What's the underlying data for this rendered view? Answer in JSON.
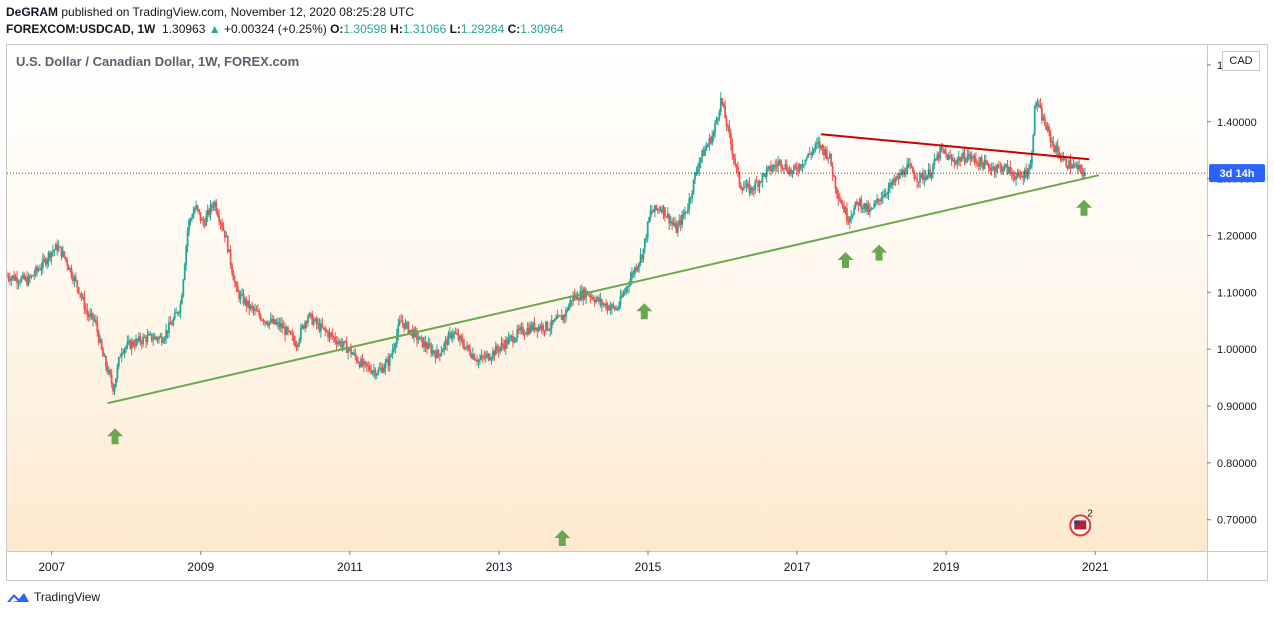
{
  "header": {
    "author": "DeGRAM",
    "published_text": "published on TradingView.com, November 12, 2020 08:25:28 UTC",
    "symbol": "FOREXCOM:USDCAD, 1W",
    "last_price": "1.30963",
    "change": "+0.00324 (+0.25%)",
    "open_label": "O:",
    "open": "1.30598",
    "high_label": "H:",
    "high": "1.31066",
    "low_label": "L:",
    "low": "1.29284",
    "close_label": "C:",
    "close": "1.30964"
  },
  "footer": {
    "brand": "TradingView"
  },
  "chart_data": {
    "type": "candlestick",
    "title": "U.S. Dollar / Canadian Dollar, 1W, FOREX.com",
    "currency_label": "CAD",
    "countdown_label": "3d 14h",
    "y_ticks": [
      "1.50000",
      "1.40000",
      "1.30000",
      "1.20000",
      "1.10000",
      "1.00000",
      "0.90000",
      "0.80000",
      "0.70000"
    ],
    "ylim": [
      0.645,
      1.535
    ],
    "x_ticks": [
      "2007",
      "2009",
      "2011",
      "2013",
      "2015",
      "2017",
      "2019",
      "2021"
    ],
    "xlim": [
      2006.4,
      2022.5
    ],
    "current_price": 1.30963,
    "price_path": [
      [
        2006.4,
        1.13
      ],
      [
        2006.7,
        1.12
      ],
      [
        2006.9,
        1.15
      ],
      [
        2007.0,
        1.17
      ],
      [
        2007.1,
        1.18
      ],
      [
        2007.2,
        1.16
      ],
      [
        2007.4,
        1.1
      ],
      [
        2007.5,
        1.06
      ],
      [
        2007.6,
        1.05
      ],
      [
        2007.7,
        0.99
      ],
      [
        2007.85,
        0.93
      ],
      [
        2007.95,
        1.0
      ],
      [
        2008.1,
        1.01
      ],
      [
        2008.3,
        1.02
      ],
      [
        2008.5,
        1.02
      ],
      [
        2008.65,
        1.05
      ],
      [
        2008.75,
        1.08
      ],
      [
        2008.85,
        1.22
      ],
      [
        2008.95,
        1.25
      ],
      [
        2009.05,
        1.22
      ],
      [
        2009.2,
        1.26
      ],
      [
        2009.35,
        1.2
      ],
      [
        2009.5,
        1.1
      ],
      [
        2009.7,
        1.07
      ],
      [
        2009.9,
        1.05
      ],
      [
        2010.1,
        1.04
      ],
      [
        2010.3,
        1.01
      ],
      [
        2010.45,
        1.06
      ],
      [
        2010.6,
        1.04
      ],
      [
        2010.8,
        1.02
      ],
      [
        2011.0,
        1.0
      ],
      [
        2011.2,
        0.97
      ],
      [
        2011.4,
        0.96
      ],
      [
        2011.55,
        0.98
      ],
      [
        2011.7,
        1.05
      ],
      [
        2011.85,
        1.03
      ],
      [
        2012.0,
        1.01
      ],
      [
        2012.2,
        0.99
      ],
      [
        2012.4,
        1.03
      ],
      [
        2012.6,
        1.0
      ],
      [
        2012.75,
        0.98
      ],
      [
        2012.9,
        0.99
      ],
      [
        2013.1,
        1.01
      ],
      [
        2013.3,
        1.03
      ],
      [
        2013.5,
        1.04
      ],
      [
        2013.7,
        1.04
      ],
      [
        2013.9,
        1.06
      ],
      [
        2014.0,
        1.09
      ],
      [
        2014.2,
        1.1
      ],
      [
        2014.4,
        1.08
      ],
      [
        2014.6,
        1.07
      ],
      [
        2014.8,
        1.13
      ],
      [
        2014.95,
        1.17
      ],
      [
        2015.05,
        1.24
      ],
      [
        2015.2,
        1.25
      ],
      [
        2015.4,
        1.21
      ],
      [
        2015.55,
        1.25
      ],
      [
        2015.7,
        1.33
      ],
      [
        2015.9,
        1.38
      ],
      [
        2016.0,
        1.44
      ],
      [
        2016.1,
        1.38
      ],
      [
        2016.25,
        1.29
      ],
      [
        2016.4,
        1.28
      ],
      [
        2016.6,
        1.31
      ],
      [
        2016.8,
        1.33
      ],
      [
        2016.95,
        1.31
      ],
      [
        2017.1,
        1.33
      ],
      [
        2017.3,
        1.36
      ],
      [
        2017.45,
        1.34
      ],
      [
        2017.55,
        1.28
      ],
      [
        2017.7,
        1.23
      ],
      [
        2017.85,
        1.26
      ],
      [
        2018.0,
        1.24
      ],
      [
        2018.15,
        1.27
      ],
      [
        2018.3,
        1.29
      ],
      [
        2018.5,
        1.32
      ],
      [
        2018.65,
        1.3
      ],
      [
        2018.8,
        1.31
      ],
      [
        2018.95,
        1.35
      ],
      [
        2019.1,
        1.33
      ],
      [
        2019.3,
        1.34
      ],
      [
        2019.45,
        1.33
      ],
      [
        2019.6,
        1.32
      ],
      [
        2019.8,
        1.32
      ],
      [
        2020.0,
        1.3
      ],
      [
        2020.15,
        1.32
      ],
      [
        2020.22,
        1.44
      ],
      [
        2020.3,
        1.41
      ],
      [
        2020.45,
        1.36
      ],
      [
        2020.6,
        1.33
      ],
      [
        2020.75,
        1.32
      ],
      [
        2020.87,
        1.31
      ]
    ],
    "trendlines": [
      {
        "name": "support",
        "color": "#6aa84f",
        "points": [
          [
            2007.75,
            0.905
          ],
          [
            2021.05,
            1.306
          ]
        ]
      },
      {
        "name": "resistance",
        "color": "#cc0000",
        "points": [
          [
            2017.32,
            1.378
          ],
          [
            2020.92,
            1.334
          ]
        ]
      }
    ],
    "arrows": [
      {
        "color": "#6aa84f",
        "at": [
          2007.85,
          0.845
        ]
      },
      {
        "color": "#6aa84f",
        "at": [
          2013.85,
          0.666
        ]
      },
      {
        "color": "#6aa84f",
        "at": [
          2014.95,
          1.065
        ]
      },
      {
        "color": "#6aa84f",
        "at": [
          2017.65,
          1.155
        ]
      },
      {
        "color": "#6aa84f",
        "at": [
          2018.1,
          1.168
        ]
      },
      {
        "color": "#6aa84f",
        "at": [
          2020.85,
          1.247
        ]
      }
    ],
    "event_badge": {
      "count": "2",
      "at": [
        2020.8,
        0.69
      ]
    },
    "colors": {
      "up": "#26a69a",
      "down": "#ef5350",
      "accent": "#2962ff"
    }
  }
}
